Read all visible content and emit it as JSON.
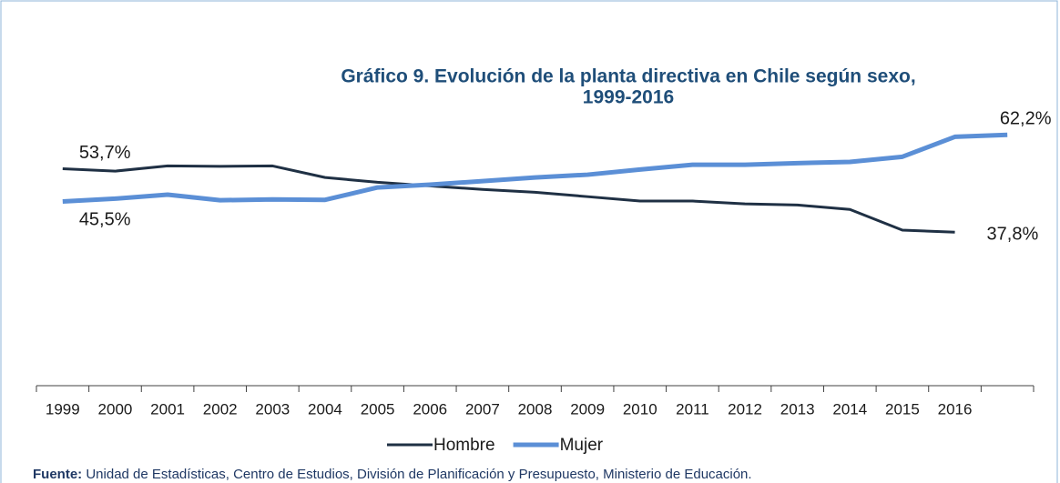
{
  "chart_data": {
    "type": "line",
    "title": [
      "Gráfico 9. Evolución de la planta directiva en Chile según sexo,",
      "1999-2016"
    ],
    "categories": [
      "1999",
      "2000",
      "2001",
      "2002",
      "2003",
      "2004",
      "2005",
      "2006",
      "2007",
      "2008",
      "2009",
      "2010",
      "2011",
      "2012",
      "2013",
      "2014",
      "2015",
      "2016",
      null
    ],
    "ylim": [
      0,
      70
    ],
    "series": [
      {
        "name": "Hombre",
        "color": "#1f3044",
        "values": [
          53.7,
          53.1,
          54.4,
          54.3,
          54.4,
          51.5,
          50.3,
          49.4,
          48.5,
          47.8,
          46.7,
          45.6,
          45.6,
          44.9,
          44.6,
          43.5,
          38.3,
          37.8,
          null
        ],
        "value_labels": [
          "53,7%",
          null,
          null,
          null,
          null,
          null,
          null,
          null,
          null,
          null,
          null,
          null,
          null,
          null,
          null,
          null,
          null,
          "37,8%",
          null
        ]
      },
      {
        "name": "Mujer",
        "color": "#5b8fd6",
        "values": [
          45.5,
          46.2,
          47.2,
          45.8,
          46.0,
          45.9,
          49.0,
          49.7,
          50.6,
          51.5,
          52.2,
          53.5,
          54.7,
          54.7,
          55.1,
          55.4,
          56.7,
          61.7,
          62.2
        ],
        "value_labels": [
          "45,5%",
          null,
          null,
          null,
          null,
          null,
          null,
          null,
          null,
          null,
          null,
          null,
          null,
          null,
          null,
          null,
          null,
          null,
          "62,2%"
        ]
      }
    ],
    "legend": "bottom",
    "source": {
      "label": "Fuente:",
      "text": " Unidad de Estadísticas, Centro de Estudios, División de Planificación y Presupuesto, Ministerio de Educación."
    }
  }
}
